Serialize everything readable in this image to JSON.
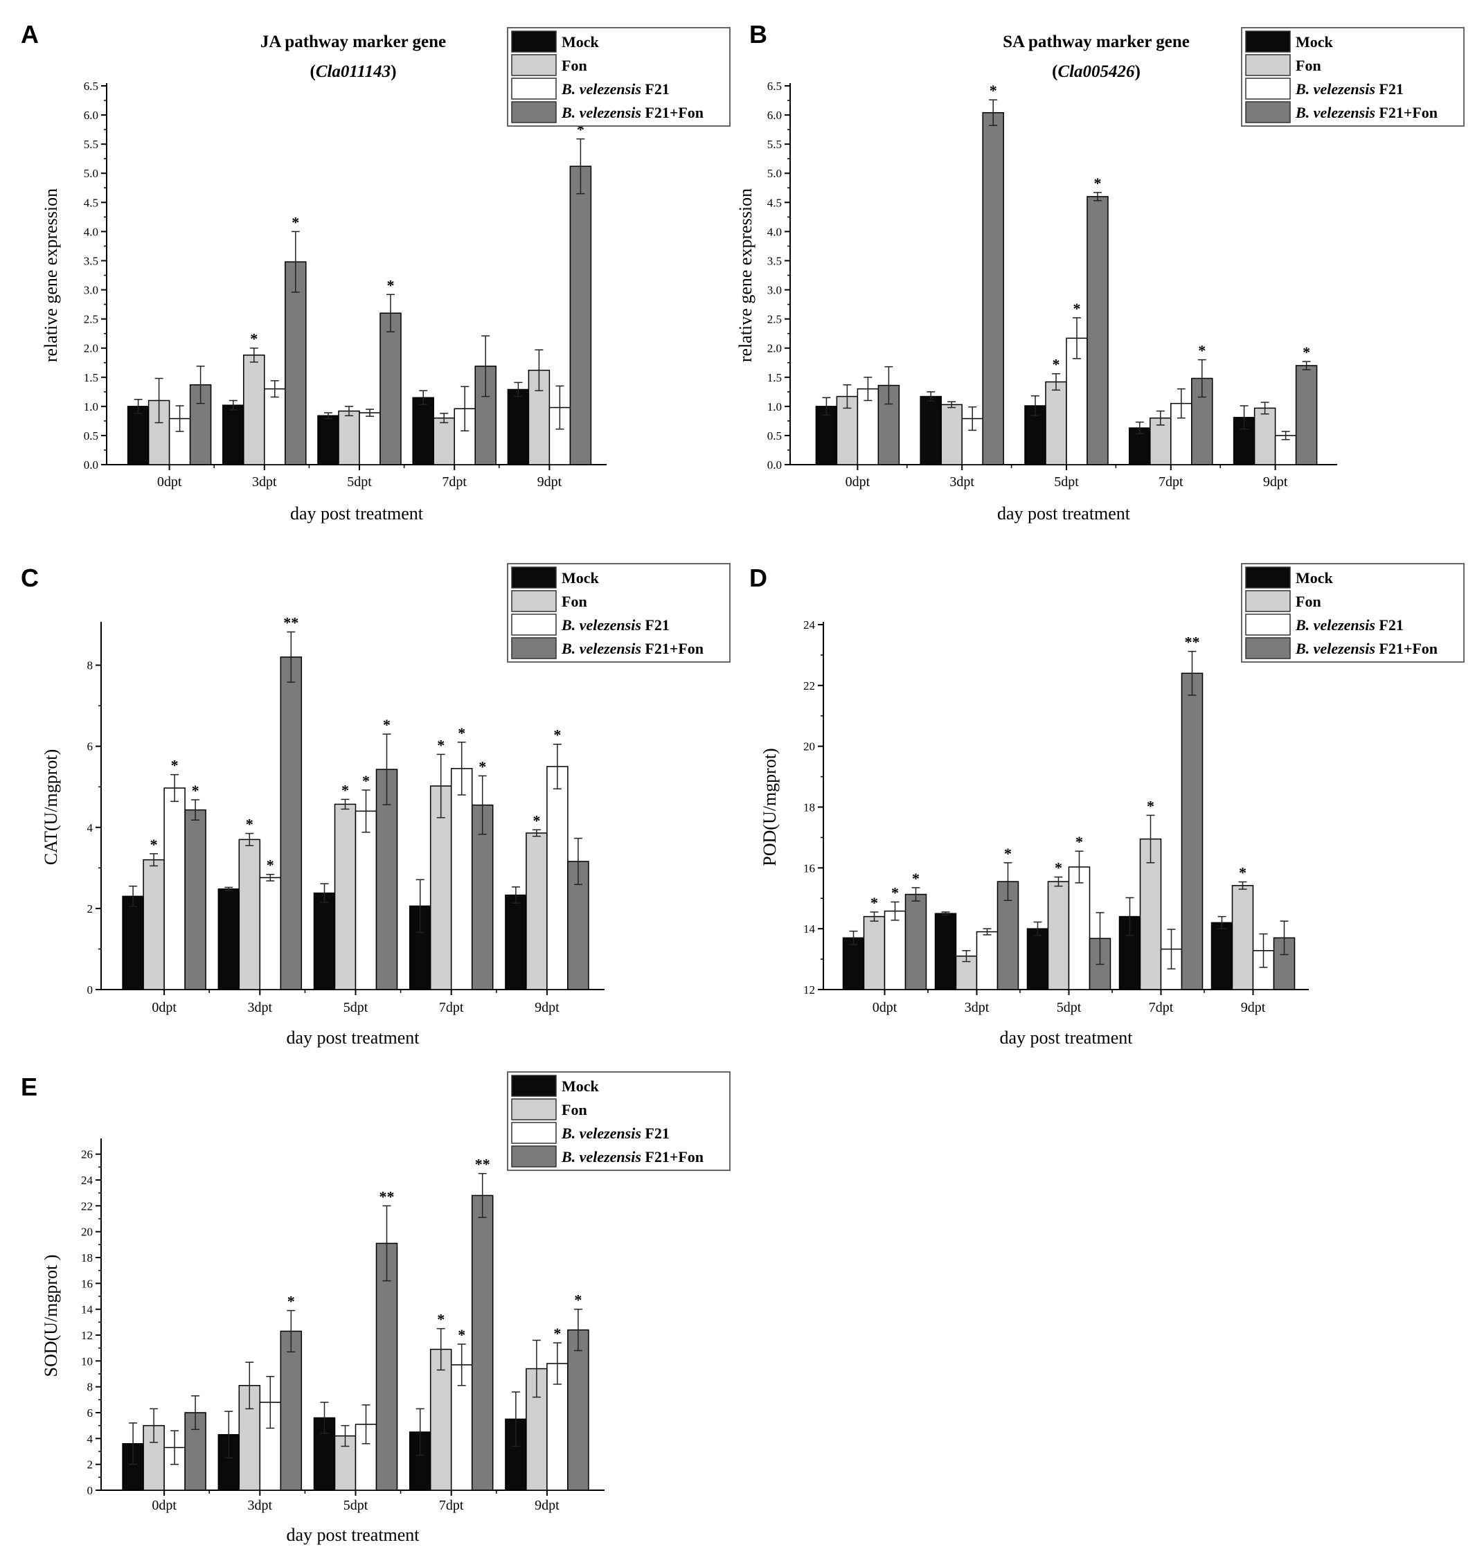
{
  "colors": {
    "mock": "#0a0a0a",
    "fon": "#cfcfcf",
    "f21": "#ffffff",
    "f21_fon": "#7b7b7b",
    "axis": "#000000"
  },
  "chart_data": [
    {
      "panel": "A",
      "type": "bar",
      "title_line1": "JA pathway marker gene",
      "title_line2": "(Cla011143)",
      "title_italic_word": "Cla011143",
      "xlabel": "day post treatment",
      "ylabel": "relative gene expression",
      "ylim": [
        0,
        6.5
      ],
      "yticks": [
        "0.0",
        "0.5",
        "1.0",
        "1.5",
        "2.0",
        "2.5",
        "3.0",
        "3.5",
        "4.0",
        "4.5",
        "5.0",
        "5.5",
        "6.0",
        "6.5"
      ],
      "yticks_values": [
        0,
        0.5,
        1,
        1.5,
        2,
        2.5,
        3,
        3.5,
        4,
        4.5,
        5,
        5.5,
        6,
        6.5
      ],
      "categories": [
        "0dpt",
        "3dpt",
        "5dpt",
        "7dpt",
        "9dpt"
      ],
      "series": [
        {
          "name": "Mock",
          "values": [
            1.0,
            1.02,
            0.84,
            1.15,
            1.29
          ],
          "errors": [
            0.12,
            0.08,
            0.05,
            0.12,
            0.12
          ],
          "marks": [
            "",
            "",
            "",
            "",
            ""
          ]
        },
        {
          "name": "Fon",
          "values": [
            1.1,
            1.88,
            0.92,
            0.8,
            1.62
          ],
          "errors": [
            0.38,
            0.12,
            0.08,
            0.08,
            0.35
          ],
          "marks": [
            "",
            "*",
            "",
            "",
            ""
          ]
        },
        {
          "name": "B. velezensis F21",
          "values": [
            0.79,
            1.3,
            0.89,
            0.96,
            0.98
          ],
          "errors": [
            0.22,
            0.14,
            0.06,
            0.38,
            0.37
          ],
          "marks": [
            "",
            "",
            "",
            "",
            ""
          ]
        },
        {
          "name": "B. velezensis F21+Fon",
          "values": [
            1.37,
            3.48,
            2.6,
            1.69,
            5.12
          ],
          "errors": [
            0.32,
            0.52,
            0.32,
            0.52,
            0.47
          ],
          "marks": [
            "",
            "*",
            "*",
            "",
            "*"
          ]
        }
      ]
    },
    {
      "panel": "B",
      "type": "bar",
      "title_line1": "SA pathway marker gene",
      "title_line2": "(Cla005426)",
      "title_italic_word": "Cla005426",
      "xlabel": "day post treatment",
      "ylabel": "relative gene expression",
      "ylim": [
        0,
        6.5
      ],
      "yticks": [
        "0.0",
        "0.5",
        "1.0",
        "1.5",
        "2.0",
        "2.5",
        "3.0",
        "3.5",
        "4.0",
        "4.5",
        "5.0",
        "5.5",
        "6.0",
        "6.5"
      ],
      "yticks_values": [
        0,
        0.5,
        1,
        1.5,
        2,
        2.5,
        3,
        3.5,
        4,
        4.5,
        5,
        5.5,
        6,
        6.5
      ],
      "categories": [
        "0dpt",
        "3dpt",
        "5dpt",
        "7dpt",
        "9dpt"
      ],
      "series": [
        {
          "name": "Mock",
          "values": [
            1.0,
            1.17,
            1.01,
            0.63,
            0.81
          ],
          "errors": [
            0.15,
            0.08,
            0.17,
            0.1,
            0.2
          ],
          "marks": [
            "",
            "",
            "",
            "",
            ""
          ]
        },
        {
          "name": "Fon",
          "values": [
            1.17,
            1.03,
            1.42,
            0.8,
            0.97
          ],
          "errors": [
            0.2,
            0.05,
            0.14,
            0.12,
            0.1
          ],
          "marks": [
            "",
            "",
            "*",
            "",
            ""
          ]
        },
        {
          "name": "B. velezensis F21",
          "values": [
            1.3,
            0.79,
            2.17,
            1.05,
            0.5
          ],
          "errors": [
            0.2,
            0.2,
            0.35,
            0.25,
            0.07
          ],
          "marks": [
            "",
            "",
            "*",
            "",
            ""
          ]
        },
        {
          "name": "B. velezensis F21+Fon",
          "values": [
            1.36,
            6.04,
            4.6,
            1.48,
            1.7
          ],
          "errors": [
            0.32,
            0.22,
            0.07,
            0.32,
            0.07
          ],
          "marks": [
            "",
            "*",
            "*",
            "*",
            "*"
          ]
        }
      ]
    },
    {
      "panel": "C",
      "type": "bar",
      "title_line1": "",
      "title_line2": "",
      "title_italic_word": "",
      "xlabel": "day post treatment",
      "ylabel": "CAT(U/mgprot)",
      "ylim": [
        0,
        9
      ],
      "yticks": [
        "0",
        "2",
        "4",
        "6",
        "8"
      ],
      "yticks_values": [
        0,
        2,
        4,
        6,
        8
      ],
      "categories": [
        "0dpt",
        "3dpt",
        "5dpt",
        "7dpt",
        "9dpt"
      ],
      "series": [
        {
          "name": "Mock",
          "values": [
            2.3,
            2.48,
            2.38,
            2.06,
            2.33
          ],
          "errors": [
            0.25,
            0.04,
            0.23,
            0.65,
            0.2
          ],
          "marks": [
            "",
            "",
            "",
            "",
            ""
          ]
        },
        {
          "name": "Fon",
          "values": [
            3.2,
            3.7,
            4.57,
            5.02,
            3.86
          ],
          "errors": [
            0.15,
            0.15,
            0.12,
            0.78,
            0.08
          ],
          "marks": [
            "*",
            "*",
            "*",
            "*",
            "*"
          ]
        },
        {
          "name": "B. velezensis F21",
          "values": [
            4.97,
            2.76,
            4.4,
            5.45,
            5.5
          ],
          "errors": [
            0.33,
            0.08,
            0.52,
            0.65,
            0.55
          ],
          "marks": [
            "*",
            "*",
            "*",
            "*",
            "*"
          ]
        },
        {
          "name": "B. velezensis F21+Fon",
          "values": [
            4.43,
            8.2,
            5.43,
            4.55,
            3.16
          ],
          "errors": [
            0.25,
            0.62,
            0.87,
            0.72,
            0.57
          ],
          "marks": [
            "*",
            "**",
            "*",
            "*",
            ""
          ]
        }
      ]
    },
    {
      "panel": "D",
      "type": "bar",
      "title_line1": "",
      "title_line2": "",
      "title_italic_word": "",
      "xlabel": "day post treatment",
      "ylabel": "POD(U/mgprot)",
      "ylim": [
        12,
        24
      ],
      "yticks": [
        "12",
        "14",
        "16",
        "18",
        "20",
        "22",
        "24"
      ],
      "yticks_values": [
        12,
        14,
        16,
        18,
        20,
        22,
        24
      ],
      "categories": [
        "0dpt",
        "3dpt",
        "5dpt",
        "7dpt",
        "9dpt"
      ],
      "series": [
        {
          "name": "Mock",
          "values": [
            13.7,
            14.5,
            14.0,
            14.4,
            14.2
          ],
          "errors": [
            0.22,
            0.05,
            0.22,
            0.62,
            0.2
          ],
          "marks": [
            "",
            "",
            "",
            "",
            ""
          ]
        },
        {
          "name": "Fon",
          "values": [
            14.4,
            13.1,
            15.55,
            16.95,
            15.42
          ],
          "errors": [
            0.15,
            0.18,
            0.15,
            0.78,
            0.12
          ],
          "marks": [
            "*",
            "",
            "*",
            "*",
            "*"
          ]
        },
        {
          "name": "B. velezensis F21",
          "values": [
            14.58,
            13.9,
            16.03,
            13.33,
            13.28
          ],
          "errors": [
            0.3,
            0.1,
            0.52,
            0.65,
            0.55
          ],
          "marks": [
            "*",
            "",
            "*",
            "",
            ""
          ]
        },
        {
          "name": "B. velezensis F21+Fon",
          "values": [
            15.13,
            15.55,
            13.68,
            22.4,
            13.7
          ],
          "errors": [
            0.22,
            0.62,
            0.85,
            0.72,
            0.55
          ],
          "marks": [
            "*",
            "*",
            "",
            "**",
            ""
          ]
        }
      ]
    },
    {
      "panel": "E",
      "type": "bar",
      "title_line1": "",
      "title_line2": "",
      "title_italic_word": "",
      "xlabel": "day post treatment",
      "ylabel": "SOD(U/mgprot )",
      "ylim": [
        0,
        27
      ],
      "yticks": [
        "0",
        "2",
        "4",
        "6",
        "8",
        "10",
        "12",
        "14",
        "16",
        "18",
        "20",
        "22",
        "24",
        "26"
      ],
      "yticks_values": [
        0,
        2,
        4,
        6,
        8,
        10,
        12,
        14,
        16,
        18,
        20,
        22,
        24,
        26
      ],
      "categories": [
        "0dpt",
        "3dpt",
        "5dpt",
        "7dpt",
        "9dpt"
      ],
      "series": [
        {
          "name": "Mock",
          "values": [
            3.6,
            4.3,
            5.6,
            4.5,
            5.5
          ],
          "errors": [
            1.6,
            1.8,
            1.2,
            1.8,
            2.1
          ],
          "marks": [
            "",
            "",
            "",
            "",
            ""
          ]
        },
        {
          "name": "Fon",
          "values": [
            5.0,
            8.1,
            4.2,
            10.9,
            9.4
          ],
          "errors": [
            1.3,
            1.8,
            0.8,
            1.6,
            2.2
          ],
          "marks": [
            "",
            "",
            "",
            "*",
            ""
          ]
        },
        {
          "name": "B. velezensis F21",
          "values": [
            3.3,
            6.8,
            5.1,
            9.7,
            9.8
          ],
          "errors": [
            1.3,
            2.0,
            1.5,
            1.6,
            1.6
          ],
          "marks": [
            "",
            "",
            "",
            "*",
            "*"
          ]
        },
        {
          "name": "B. velezensis F21+Fon",
          "values": [
            6.0,
            12.3,
            19.1,
            22.8,
            12.4
          ],
          "errors": [
            1.3,
            1.6,
            2.9,
            1.7,
            1.6
          ],
          "marks": [
            "",
            "*",
            "**",
            "**",
            "*"
          ]
        }
      ]
    }
  ]
}
